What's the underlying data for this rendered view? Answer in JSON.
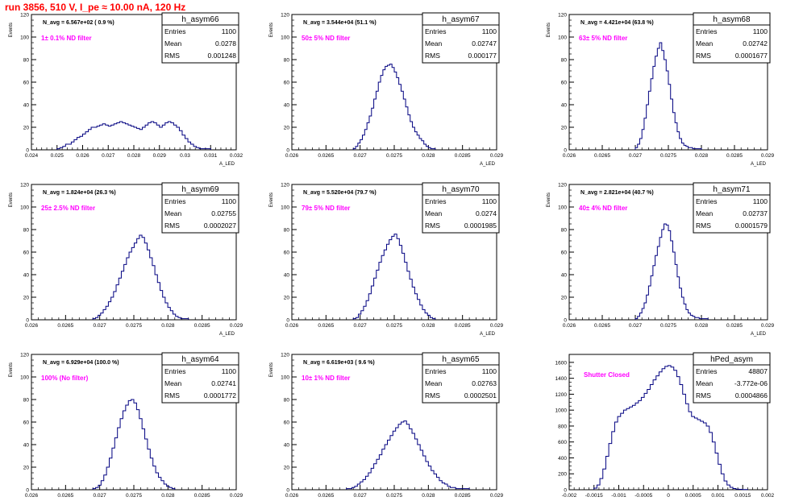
{
  "page_title": "run 3856,   510 V, I_pe ≈ 10.00 nA, 120 Hz",
  "chart_data": [
    {
      "type": "bar",
      "title": "h_asym66",
      "xlabel": "A_LED",
      "ylabel": "Events",
      "xlim": [
        0.024,
        0.032
      ],
      "ylim": [
        0,
        120
      ],
      "xticks": [
        0.024,
        0.025,
        0.026,
        0.027,
        0.028,
        0.029,
        0.03,
        0.031,
        0.032
      ],
      "xtick_labels": [
        "0.024",
        "0.025",
        "0.026",
        "0.027",
        "0.028",
        "0.029",
        "0.03",
        "0.031",
        "0.032"
      ],
      "yticks": [
        0,
        20,
        40,
        60,
        80,
        100,
        120
      ],
      "stats": {
        "entries_label": "Entries",
        "entries": "1100",
        "mean_label": "Mean",
        "mean": "0.0278",
        "rms_label": "RMS",
        "rms": "0.001248"
      },
      "navg_text": "N_avg = 6.567e+02 ( 0.9 %)",
      "filter_text": "1± 0.1% ND filter",
      "bin_range": [
        0.025,
        0.031
      ],
      "counts": [
        1,
        2,
        3,
        5,
        5,
        7,
        9,
        11,
        12,
        14,
        16,
        18,
        20,
        20,
        21,
        22,
        23,
        22,
        21,
        22,
        23,
        24,
        25,
        24,
        23,
        22,
        21,
        20,
        19,
        18,
        20,
        22,
        24,
        25,
        24,
        22,
        20,
        22,
        24,
        25,
        24,
        22,
        20,
        17,
        13,
        10,
        7,
        5,
        3,
        2,
        1,
        1,
        1,
        1
      ]
    },
    {
      "type": "bar",
      "title": "h_asym67",
      "xlabel": "A_LED",
      "ylabel": "Events",
      "xlim": [
        0.026,
        0.029
      ],
      "ylim": [
        0,
        120
      ],
      "xticks": [
        0.026,
        0.0265,
        0.027,
        0.0275,
        0.028,
        0.0285,
        0.029
      ],
      "xtick_labels": [
        "0.026",
        "0.0265",
        "0.027",
        "0.0275",
        "0.028",
        "0.0285",
        "0.029"
      ],
      "yticks": [
        0,
        20,
        40,
        60,
        80,
        100,
        120
      ],
      "stats": {
        "entries_label": "Entries",
        "entries": "1100",
        "mean_label": "Mean",
        "mean": "0.02747",
        "rms_label": "RMS",
        "rms": "0.000177"
      },
      "navg_text": "N_avg = 3.544e+04 (51.1 %)",
      "filter_text": "50± 5% ND filter",
      "bin_range": [
        0.0269,
        0.0281
      ],
      "counts": [
        1,
        3,
        6,
        9,
        13,
        18,
        24,
        30,
        37,
        45,
        52,
        60,
        66,
        71,
        74,
        75,
        76,
        73,
        69,
        64,
        58,
        52,
        45,
        38,
        31,
        25,
        20,
        16,
        13,
        10,
        8,
        5,
        3,
        2,
        1,
        1
      ]
    },
    {
      "type": "bar",
      "title": "h_asym68",
      "xlabel": "A_LED",
      "ylabel": "Events",
      "xlim": [
        0.026,
        0.029
      ],
      "ylim": [
        0,
        120
      ],
      "xticks": [
        0.026,
        0.0265,
        0.027,
        0.0275,
        0.028,
        0.0285,
        0.029
      ],
      "xtick_labels": [
        "0.026",
        "0.0265",
        "0.027",
        "0.0275",
        "0.028",
        "0.0285",
        "0.029"
      ],
      "yticks": [
        0,
        20,
        40,
        60,
        80,
        100,
        120
      ],
      "stats": {
        "entries_label": "Entries",
        "entries": "1100",
        "mean_label": "Mean",
        "mean": "0.02742",
        "rms_label": "RMS",
        "rms": "0.0001677"
      },
      "navg_text": "N_avg = 4.421e+04 (63.8 %)",
      "filter_text": "63± 5% ND filter",
      "bin_range": [
        0.027,
        0.028
      ],
      "counts": [
        2,
        5,
        10,
        18,
        28,
        40,
        52,
        63,
        74,
        83,
        90,
        95,
        88,
        80,
        70,
        58,
        45,
        33,
        24,
        16,
        10,
        6,
        4,
        3,
        2,
        2,
        1,
        1,
        1,
        1
      ]
    },
    {
      "type": "bar",
      "title": "h_asym69",
      "xlabel": "A_LED",
      "ylabel": "Events",
      "xlim": [
        0.026,
        0.029
      ],
      "ylim": [
        0,
        120
      ],
      "xticks": [
        0.026,
        0.0265,
        0.027,
        0.0275,
        0.028,
        0.0285,
        0.029
      ],
      "xtick_labels": [
        "0.026",
        "0.0265",
        "0.027",
        "0.0275",
        "0.028",
        "0.0285",
        "0.029"
      ],
      "yticks": [
        0,
        20,
        40,
        60,
        80,
        100,
        120
      ],
      "stats": {
        "entries_label": "Entries",
        "entries": "1100",
        "mean_label": "Mean",
        "mean": "0.02755",
        "rms_label": "RMS",
        "rms": "0.0002027"
      },
      "navg_text": "N_avg = 1.824e+04 (26.3 %)",
      "filter_text": "25± 2.5% ND filter",
      "bin_range": [
        0.0269,
        0.0283
      ],
      "counts": [
        1,
        2,
        4,
        6,
        9,
        12,
        16,
        20,
        25,
        31,
        37,
        43,
        49,
        55,
        60,
        64,
        68,
        72,
        75,
        73,
        68,
        62,
        55,
        48,
        40,
        33,
        26,
        20,
        15,
        11,
        8,
        5,
        3,
        2,
        1,
        1,
        1
      ]
    },
    {
      "type": "bar",
      "title": "h_asym70",
      "xlabel": "A_LED",
      "ylabel": "Events",
      "xlim": [
        0.026,
        0.029
      ],
      "ylim": [
        0,
        120
      ],
      "xticks": [
        0.026,
        0.0265,
        0.027,
        0.0275,
        0.028,
        0.0285,
        0.029
      ],
      "xtick_labels": [
        "0.026",
        "0.0265",
        "0.027",
        "0.0275",
        "0.028",
        "0.0285",
        "0.029"
      ],
      "yticks": [
        0,
        20,
        40,
        60,
        80,
        100,
        120
      ],
      "stats": {
        "entries_label": "Entries",
        "entries": "1100",
        "mean_label": "Mean",
        "mean": "0.0274",
        "rms_label": "RMS",
        "rms": "0.0001985"
      },
      "navg_text": "N_avg = 5.520e+04 (79.7 %)",
      "filter_text": "79± 5% ND filter",
      "bin_range": [
        0.0269,
        0.0281
      ],
      "counts": [
        1,
        2,
        5,
        8,
        12,
        17,
        23,
        30,
        37,
        44,
        51,
        57,
        62,
        67,
        71,
        74,
        76,
        72,
        66,
        59,
        51,
        43,
        36,
        29,
        23,
        18,
        13,
        9,
        6,
        4,
        2,
        1
      ]
    },
    {
      "type": "bar",
      "title": "h_asym71",
      "xlabel": "A_LED",
      "ylabel": "Events",
      "xlim": [
        0.026,
        0.029
      ],
      "ylim": [
        0,
        120
      ],
      "xticks": [
        0.026,
        0.0265,
        0.027,
        0.0275,
        0.028,
        0.0285,
        0.029
      ],
      "xtick_labels": [
        "0.026",
        "0.0265",
        "0.027",
        "0.0275",
        "0.028",
        "0.0285",
        "0.029"
      ],
      "yticks": [
        0,
        20,
        40,
        60,
        80,
        100,
        120
      ],
      "stats": {
        "entries_label": "Entries",
        "entries": "1100",
        "mean_label": "Mean",
        "mean": "0.02737",
        "rms_label": "RMS",
        "rms": "0.0001579"
      },
      "navg_text": "N_avg = 2.821e+04 (40.7 %)",
      "filter_text": "40± 4% ND filter",
      "bin_range": [
        0.027,
        0.0281
      ],
      "counts": [
        1,
        3,
        6,
        10,
        15,
        22,
        30,
        39,
        48,
        57,
        65,
        73,
        80,
        85,
        84,
        79,
        70,
        60,
        49,
        38,
        28,
        20,
        14,
        9,
        6,
        4,
        3,
        2,
        2,
        1,
        1,
        1,
        1
      ]
    },
    {
      "type": "bar",
      "title": "h_asym64",
      "xlabel": "A_LED",
      "ylabel": "Events",
      "xlim": [
        0.026,
        0.029
      ],
      "ylim": [
        0,
        120
      ],
      "xticks": [
        0.026,
        0.0265,
        0.027,
        0.0275,
        0.028,
        0.0285,
        0.029
      ],
      "xtick_labels": [
        "0.026",
        "0.0265",
        "0.027",
        "0.0275",
        "0.028",
        "0.0285",
        "0.029"
      ],
      "yticks": [
        0,
        20,
        40,
        60,
        80,
        100,
        120
      ],
      "stats": {
        "entries_label": "Entries",
        "entries": "1100",
        "mean_label": "Mean",
        "mean": "0.02741",
        "rms_label": "RMS",
        "rms": "0.0001772"
      },
      "navg_text": "N_avg = 6.929e+04 (100.0 %)",
      "filter_text": "100% (No filter)",
      "bin_range": [
        0.0269,
        0.0281
      ],
      "counts": [
        1,
        2,
        4,
        8,
        13,
        20,
        28,
        37,
        46,
        55,
        63,
        70,
        75,
        79,
        80,
        77,
        71,
        63,
        54,
        45,
        36,
        28,
        21,
        15,
        11,
        8,
        5,
        3,
        2,
        1
      ]
    },
    {
      "type": "bar",
      "title": "h_asym65",
      "xlabel": "A_LED",
      "ylabel": "Events",
      "xlim": [
        0.026,
        0.029
      ],
      "ylim": [
        0,
        120
      ],
      "xticks": [
        0.026,
        0.0265,
        0.027,
        0.0275,
        0.028,
        0.0285,
        0.029
      ],
      "xtick_labels": [
        "0.026",
        "0.0265",
        "0.027",
        "0.0275",
        "0.028",
        "0.0285",
        "0.029"
      ],
      "yticks": [
        0,
        20,
        40,
        60,
        80,
        100,
        120
      ],
      "stats": {
        "entries_label": "Entries",
        "entries": "1100",
        "mean_label": "Mean",
        "mean": "0.02763",
        "rms_label": "RMS",
        "rms": "0.0002501"
      },
      "navg_text": "N_avg = 6.619e+03 ( 9.6 %)",
      "filter_text": "10± 1% ND filter",
      "bin_range": [
        0.0268,
        0.0286
      ],
      "counts": [
        1,
        1,
        2,
        3,
        5,
        7,
        9,
        12,
        15,
        19,
        23,
        27,
        31,
        36,
        40,
        44,
        48,
        52,
        55,
        58,
        60,
        61,
        58,
        54,
        50,
        45,
        40,
        35,
        30,
        25,
        21,
        17,
        14,
        11,
        8,
        6,
        5,
        3,
        2,
        2,
        1,
        1,
        1,
        1,
        1
      ]
    },
    {
      "type": "bar",
      "title": "hPed_asym",
      "xlabel": "",
      "ylabel": "",
      "xlim": [
        -0.002,
        0.002
      ],
      "ylim": [
        0,
        1700
      ],
      "xticks": [
        -0.002,
        -0.0015,
        -0.001,
        -0.0005,
        0,
        0.0005,
        0.001,
        0.0015,
        0.002
      ],
      "xtick_labels": [
        "-0.002",
        "-0.0015",
        "-0.001",
        "-0.0005",
        "0",
        "0.0005",
        "0.001",
        "0.0015",
        "0.002"
      ],
      "yticks": [
        0,
        200,
        400,
        600,
        800,
        1000,
        1200,
        1400,
        1600
      ],
      "stats": {
        "entries_label": "Entries",
        "entries": "48807",
        "mean_label": "Mean",
        "mean": "-3.772e-06",
        "rms_label": "RMS",
        "rms": "0.0004866"
      },
      "navg_text": "",
      "filter_text": "Shutter Closed",
      "bin_range": [
        -0.0015,
        0.0016
      ],
      "counts": [
        20,
        60,
        140,
        260,
        420,
        580,
        730,
        850,
        920,
        960,
        1000,
        1020,
        1040,
        1060,
        1090,
        1120,
        1160,
        1210,
        1260,
        1320,
        1380,
        1430,
        1480,
        1520,
        1550,
        1560,
        1540,
        1500,
        1420,
        1320,
        1200,
        1080,
        980,
        920,
        900,
        880,
        860,
        840,
        800,
        720,
        600,
        460,
        320,
        200,
        110,
        60,
        30,
        15,
        8,
        5,
        3,
        2
      ]
    }
  ]
}
